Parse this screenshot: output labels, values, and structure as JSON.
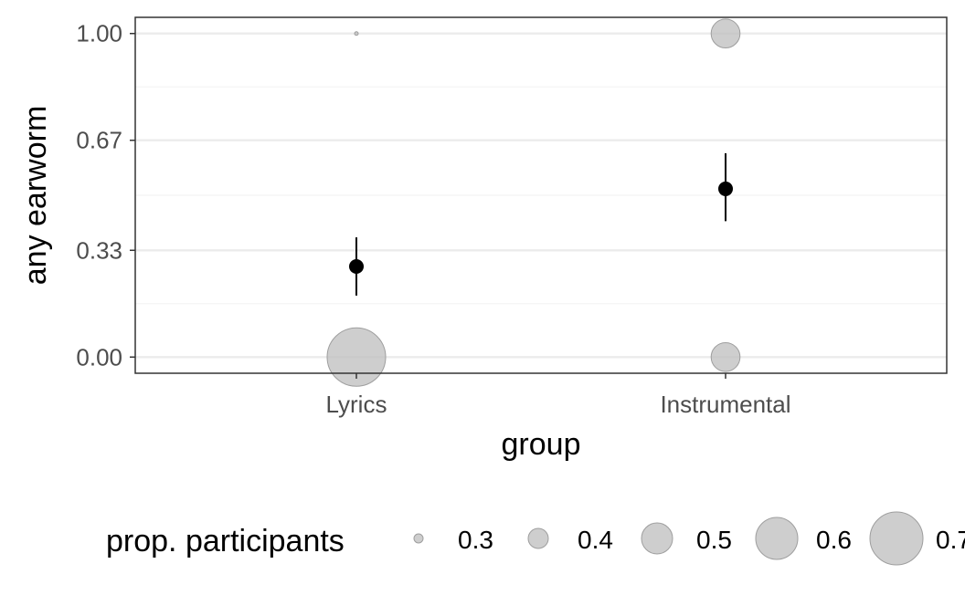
{
  "chart_data": {
    "type": "scatter",
    "title": "",
    "xlabel": "group",
    "ylabel": "any earworm",
    "categories": [
      "Lyrics",
      "Instrumental"
    ],
    "ylim": [
      -0.05,
      1.05
    ],
    "y_ticks": [
      0.0,
      0.33,
      0.67,
      1.0
    ],
    "y_tick_labels": [
      "0.00",
      "0.33",
      "0.67",
      "1.00"
    ],
    "grid": true,
    "proportion_points": [
      {
        "category": "Lyrics",
        "y": 1.0,
        "prop": 0.25
      },
      {
        "category": "Lyrics",
        "y": 0.0,
        "prop": 0.75
      },
      {
        "category": "Instrumental",
        "y": 1.0,
        "prop": 0.48
      },
      {
        "category": "Instrumental",
        "y": 0.0,
        "prop": 0.48
      }
    ],
    "means": [
      {
        "category": "Lyrics",
        "mean": 0.28,
        "lower": 0.19,
        "upper": 0.37
      },
      {
        "category": "Instrumental",
        "mean": 0.52,
        "lower": 0.42,
        "upper": 0.63
      }
    ],
    "legend": {
      "title": "prop. participants",
      "placement": "bottom",
      "values": [
        0.3,
        0.4,
        0.5,
        0.6,
        0.7
      ],
      "labels": [
        "0.3",
        "0.4",
        "0.5",
        "0.6",
        "0.7"
      ]
    },
    "colors": {
      "point_fill": "#bdbdbd",
      "point_stroke": "#9e9e9e",
      "mean": "#000000",
      "grid_major": "#ebebeb",
      "grid_minor": "#f4f4f4",
      "panel_border": "#333333"
    }
  }
}
